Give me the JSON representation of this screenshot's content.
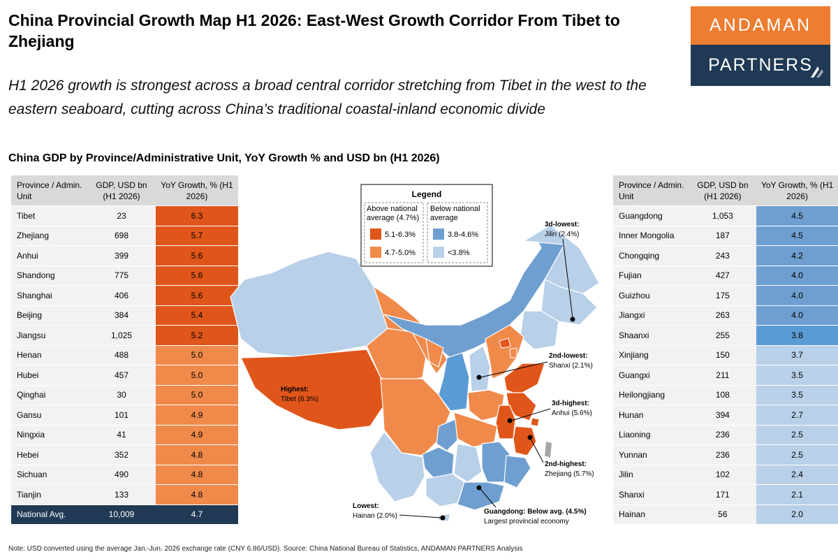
{
  "title": "China Provincial Growth Map H1 2026: East-West Growth Corridor From Tibet to Zhejiang",
  "logo": {
    "line1": "ANDAMAN",
    "line2": "PARTNERS"
  },
  "subtitle": "H1 2026 growth is strongest across a broad central corridor stretching from Tibet in the west to the eastern seaboard, cutting across China’s traditional coastal-inland economic divide",
  "section_title": "China GDP by Province/Administrative Unit, YoY Growth % and USD bn (H1 2026)",
  "colors": {
    "dark_orange": "#e0561a",
    "orange": "#f08a4b",
    "blue": "#6f9fd0",
    "light_blue": "#b8d0e8",
    "highlight_blue": "#5b9bd5",
    "navy": "#203a55",
    "logo_orange": "#ed7d31"
  },
  "table_headers": {
    "province": "Province / Admin. Unit",
    "gdp": "GDP, USD bn (H1 2026)",
    "growth": "YoY Growth, % (H1 2026)"
  },
  "left_table": [
    {
      "province": "Tibet",
      "gdp": "23",
      "growth": "6.3",
      "cat": "dark"
    },
    {
      "province": "Zhejiang",
      "gdp": "698",
      "growth": "5.7",
      "cat": "dark"
    },
    {
      "province": "Anhui",
      "gdp": "399",
      "growth": "5.6",
      "cat": "dark"
    },
    {
      "province": "Shandong",
      "gdp": "775",
      "growth": "5.6",
      "cat": "dark"
    },
    {
      "province": "Shanghai",
      "gdp": "406",
      "growth": "5.6",
      "cat": "dark"
    },
    {
      "province": "Beijing",
      "gdp": "384",
      "growth": "5.4",
      "cat": "dark"
    },
    {
      "province": "Jiangsu",
      "gdp": "1,025",
      "growth": "5.2",
      "cat": "dark"
    },
    {
      "province": "Henan",
      "gdp": "488",
      "growth": "5.0",
      "cat": "orange"
    },
    {
      "province": "Hubei",
      "gdp": "457",
      "growth": "5.0",
      "cat": "orange"
    },
    {
      "province": "Qinghai",
      "gdp": "30",
      "growth": "5.0",
      "cat": "orange"
    },
    {
      "province": "Gansu",
      "gdp": "101",
      "growth": "4.9",
      "cat": "orange"
    },
    {
      "province": "Ningxia",
      "gdp": "41",
      "growth": "4.9",
      "cat": "orange"
    },
    {
      "province": "Hebei",
      "gdp": "352",
      "growth": "4.8",
      "cat": "orange"
    },
    {
      "province": "Sichuan",
      "gdp": "490",
      "growth": "4.8",
      "cat": "orange"
    },
    {
      "province": "Tianjin",
      "gdp": "133",
      "growth": "4.8",
      "cat": "orange"
    },
    {
      "province": "National Avg.",
      "gdp": "10,009",
      "growth": "4.7",
      "cat": "avg"
    }
  ],
  "right_table": [
    {
      "province": "Guangdong",
      "gdp": "1,053",
      "growth": "4.5",
      "cat": "blue"
    },
    {
      "province": "Inner Mongolia",
      "gdp": "187",
      "growth": "4.5",
      "cat": "blue"
    },
    {
      "province": "Chongqing",
      "gdp": "243",
      "growth": "4.2",
      "cat": "blue"
    },
    {
      "province": "Fujian",
      "gdp": "427",
      "growth": "4.0",
      "cat": "blue"
    },
    {
      "province": "Guizhou",
      "gdp": "175",
      "growth": "4.0",
      "cat": "blue"
    },
    {
      "province": "Jiangxi",
      "gdp": "263",
      "growth": "4.0",
      "cat": "blue"
    },
    {
      "province": "Shaanxi",
      "gdp": "255",
      "growth": "3.8",
      "cat": "hblue"
    },
    {
      "province": "Xinjiang",
      "gdp": "150",
      "growth": "3.7",
      "cat": "light"
    },
    {
      "province": "Guangxi",
      "gdp": "211",
      "growth": "3.5",
      "cat": "light"
    },
    {
      "province": "Heilongjiang",
      "gdp": "108",
      "growth": "3.5",
      "cat": "light"
    },
    {
      "province": "Hunan",
      "gdp": "394",
      "growth": "2.7",
      "cat": "light"
    },
    {
      "province": "Liaoning",
      "gdp": "236",
      "growth": "2.5",
      "cat": "light"
    },
    {
      "province": "Yunnan",
      "gdp": "236",
      "growth": "2.5",
      "cat": "light"
    },
    {
      "province": "Jilin",
      "gdp": "102",
      "growth": "2.4",
      "cat": "light"
    },
    {
      "province": "Shanxi",
      "gdp": "171",
      "growth": "2.1",
      "cat": "light"
    },
    {
      "province": "Hainan",
      "gdp": "56",
      "growth": "2.0",
      "cat": "light"
    }
  ],
  "legend": {
    "title": "Legend",
    "above_header": "Above national average (4.7%)",
    "below_header": "Below national average",
    "items": [
      "5.1-6.3%",
      "4.7-5.0%",
      "3.8-4.6%",
      "<3.8%"
    ]
  },
  "annotations": {
    "highest": {
      "bold": "Highest:",
      "text": "Tibet (6.3%)"
    },
    "third_lowest": {
      "bold": "3d-lowest:",
      "text": "Jilin (2.4%)"
    },
    "second_lowest": {
      "bold": "2nd-lowest:",
      "text": "Shanxi (2.1%)"
    },
    "third_highest": {
      "bold": "3d-highest:",
      "text": "Anhui (5.6%)"
    },
    "second_highest": {
      "bold": "2nd-highest:",
      "text": "Zhejiang (5.7%)"
    },
    "lowest": {
      "bold": "Lowest:",
      "text": "Hainan (2.0%)"
    },
    "guangdong": {
      "bold": "Guangdong: Below avg. (4.5%)",
      "text": "Largest provincial economy"
    }
  },
  "note": "Note: USD converted using the average Jan.-Jun. 2026 exchange rate (CNY 6.86/USD). Source: China National Bureau of Statistics, ANDAMAN PARTNERS Analysis"
}
